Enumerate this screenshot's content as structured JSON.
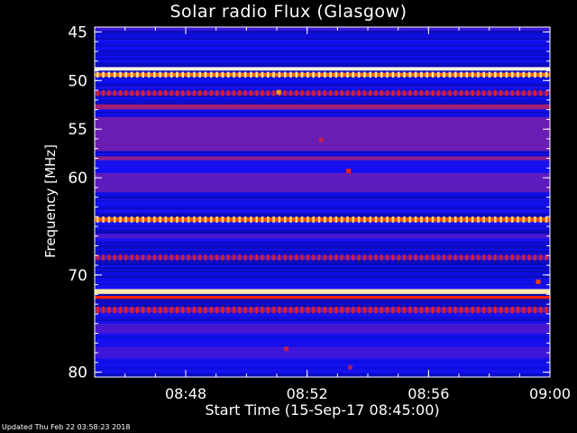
{
  "chart_data": {
    "type": "heatmap",
    "title": "Solar radio Flux (Glasgow)",
    "ylabel": "Frequency [MHz]",
    "xlabel": "Start Time (15-Sep-17 08:45:00)",
    "footer": "Updated Thu Feb 22 03:58:23 2018",
    "x_unit": "minutes after 08:45:00",
    "xlim": [
      0,
      15
    ],
    "ylim": [
      44.5,
      80.5
    ],
    "y_inverted": true,
    "x_ticks": [
      {
        "value": 3,
        "label": "08:48"
      },
      {
        "value": 7,
        "label": "08:52"
      },
      {
        "value": 11,
        "label": "08:56"
      },
      {
        "value": 15,
        "label": "09:00"
      }
    ],
    "y_ticks": [
      {
        "value": 45,
        "label": "45"
      },
      {
        "value": 50,
        "label": "50"
      },
      {
        "value": 55,
        "label": "55"
      },
      {
        "value": 60,
        "label": "60"
      },
      {
        "value": 70,
        "label": "70"
      },
      {
        "value": 80,
        "label": "80"
      }
    ],
    "colormap": [
      "#000000",
      "#1010ff",
      "#8020a0",
      "#ff2000",
      "#ffa000",
      "#ffffe0"
    ],
    "background_level": 0.18,
    "bands": [
      {
        "freq": 44.7,
        "width": 0.3,
        "level": 0.28
      },
      {
        "freq": 48.8,
        "width": 0.35,
        "level": 1.0
      },
      {
        "freq": 49.4,
        "width": 0.4,
        "level": 0.72,
        "dashed": true
      },
      {
        "freq": 51.3,
        "width": 0.4,
        "level": 0.35,
        "dashed": true
      },
      {
        "freq": 52.7,
        "width": 0.5,
        "level": 0.45
      },
      {
        "freq": 55.5,
        "width": 3.5,
        "level": 0.36
      },
      {
        "freq": 58.0,
        "width": 0.4,
        "level": 0.42
      },
      {
        "freq": 60.5,
        "width": 2.0,
        "level": 0.34
      },
      {
        "freq": 64.3,
        "width": 0.45,
        "level": 0.68,
        "dashed": true
      },
      {
        "freq": 66.0,
        "width": 0.5,
        "level": 0.3
      },
      {
        "freq": 68.2,
        "width": 0.4,
        "level": 0.33,
        "dashed": true
      },
      {
        "freq": 71.7,
        "width": 0.5,
        "level": 0.95
      },
      {
        "freq": 72.3,
        "width": 0.3,
        "level": 0.6
      },
      {
        "freq": 73.6,
        "width": 0.5,
        "level": 0.36,
        "dashed": true
      },
      {
        "freq": 75.5,
        "width": 1.0,
        "level": 0.3
      },
      {
        "freq": 78.0,
        "width": 1.2,
        "level": 0.28
      }
    ],
    "spots": [
      {
        "time": 6.05,
        "freq": 51.2,
        "level": 0.8
      },
      {
        "time": 8.35,
        "freq": 59.3,
        "level": 0.6
      },
      {
        "time": 7.45,
        "freq": 56.1,
        "level": 0.5
      },
      {
        "time": 14.6,
        "freq": 70.7,
        "level": 0.65
      },
      {
        "time": 6.3,
        "freq": 77.6,
        "level": 0.5
      },
      {
        "time": 8.4,
        "freq": 79.5,
        "level": 0.45
      }
    ]
  }
}
